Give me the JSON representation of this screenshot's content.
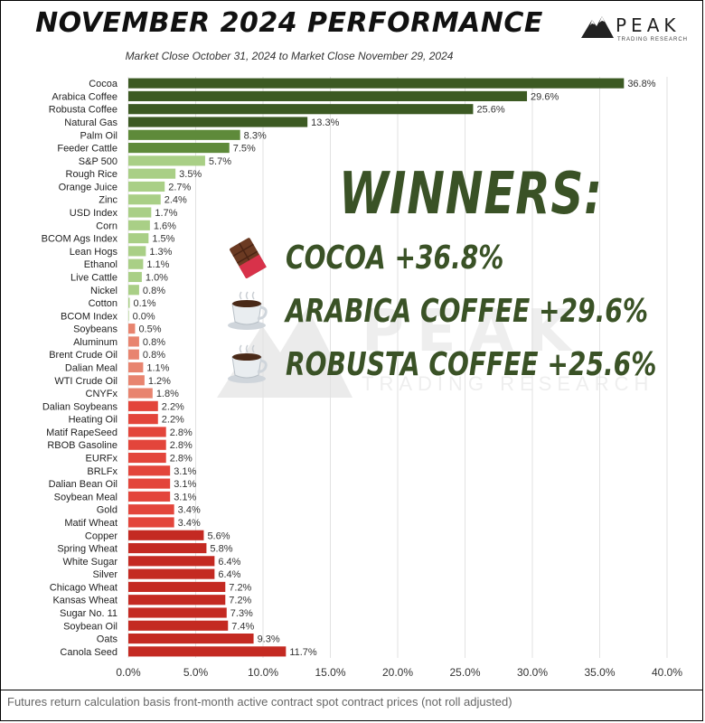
{
  "header": {
    "title": "NOVEMBER 2024 PERFORMANCE",
    "subtitle": "Market Close October 31, 2024 to Market Close November 29, 2024",
    "logo_name": "PEAK",
    "logo_tag": "TRADING RESEARCH"
  },
  "winners": {
    "heading": "WINNERS:",
    "items": [
      {
        "icon": "chocolate-bar-icon",
        "text": "COCOA +36.8%"
      },
      {
        "icon": "coffee-cup-icon",
        "text": "ARABICA COFFEE +29.6%"
      },
      {
        "icon": "coffee-cup-icon",
        "text": "ROBUSTA COFFEE +25.6%"
      }
    ]
  },
  "watermark": {
    "name": "PEAK",
    "tag": "TRADING RESEARCH"
  },
  "footer": "Futures return calculation basis front-month active contract spot contract prices (not roll adjusted)",
  "colors": {
    "dark_green": "#3c5a23",
    "mid_green": "#5e8a3a",
    "light_green": "#a9cf86",
    "light_red": "#e8846f",
    "mid_red": "#e3453b",
    "dark_red": "#c42a22",
    "heading_green": "#3a5226"
  },
  "chart_data": {
    "type": "bar",
    "orientation": "horizontal",
    "title": "NOVEMBER 2024 PERFORMANCE",
    "subtitle": "Market Close October 31, 2024 to Market Close November 29, 2024",
    "xlim": [
      0,
      40
    ],
    "x_ticks": [
      "0.0%",
      "5.0%",
      "10.0%",
      "15.0%",
      "20.0%",
      "25.0%",
      "30.0%",
      "35.0%",
      "40.0%"
    ],
    "grid": true,
    "categories": [
      "Cocoa",
      "Arabica Coffee",
      "Robusta Coffee",
      "Natural Gas",
      "Palm Oil",
      "Feeder Cattle",
      "S&P 500",
      "Rough Rice",
      "Orange Juice",
      "Zinc",
      "USD Index",
      "Corn",
      "BCOM Ags Index",
      "Lean Hogs",
      "Ethanol",
      "Live Cattle",
      "Nickel",
      "Cotton",
      "BCOM Index",
      "Soybeans",
      "Aluminum",
      "Brent Crude Oil",
      "Dalian Meal",
      "WTI Crude Oil",
      "CNYFx",
      "Dalian Soybeans",
      "Heating Oil",
      "Matif RapeSeed",
      "RBOB Gasoline",
      "EURFx",
      "BRLFx",
      "Dalian Bean Oil",
      "Soybean Meal",
      "Gold",
      "Matif Wheat",
      "Copper",
      "Spring Wheat",
      "White Sugar",
      "Silver",
      "Chicago Wheat",
      "Kansas Wheat",
      "Sugar No. 11",
      "Soybean Oil",
      "Oats",
      "Canola Seed"
    ],
    "values": [
      36.8,
      29.6,
      25.6,
      13.3,
      8.3,
      7.5,
      5.7,
      3.5,
      2.7,
      2.4,
      1.7,
      1.6,
      1.5,
      1.3,
      1.1,
      1.0,
      0.8,
      0.1,
      0.0,
      0.5,
      0.8,
      0.8,
      1.1,
      1.2,
      1.8,
      2.2,
      2.2,
      2.8,
      2.8,
      2.8,
      3.1,
      3.1,
      3.1,
      3.4,
      3.4,
      5.6,
      5.8,
      6.4,
      6.4,
      7.2,
      7.2,
      7.3,
      7.4,
      9.3,
      11.7
    ],
    "value_labels": [
      "36.8%",
      "29.6%",
      "25.6%",
      "13.3%",
      "8.3%",
      "7.5%",
      "5.7%",
      "3.5%",
      "2.7%",
      "2.4%",
      "1.7%",
      "1.6%",
      "1.5%",
      "1.3%",
      "1.1%",
      "1.0%",
      "0.8%",
      "0.1%",
      "0.0%",
      "0.5%",
      "0.8%",
      "0.8%",
      "1.1%",
      "1.2%",
      "1.8%",
      "2.2%",
      "2.2%",
      "2.8%",
      "2.8%",
      "2.8%",
      "3.1%",
      "3.1%",
      "3.1%",
      "3.4%",
      "3.4%",
      "5.6%",
      "5.8%",
      "6.4%",
      "6.4%",
      "7.2%",
      "7.2%",
      "7.3%",
      "7.4%",
      "9.3%",
      "11.7%"
    ],
    "direction": [
      "gain",
      "gain",
      "gain",
      "gain",
      "gain",
      "gain",
      "gain",
      "gain",
      "gain",
      "gain",
      "gain",
      "gain",
      "gain",
      "gain",
      "gain",
      "gain",
      "gain",
      "gain",
      "gain",
      "loss",
      "loss",
      "loss",
      "loss",
      "loss",
      "loss",
      "loss",
      "loss",
      "loss",
      "loss",
      "loss",
      "loss",
      "loss",
      "loss",
      "loss",
      "loss",
      "loss",
      "loss",
      "loss",
      "loss",
      "loss",
      "loss",
      "loss",
      "loss",
      "loss",
      "loss"
    ]
  }
}
